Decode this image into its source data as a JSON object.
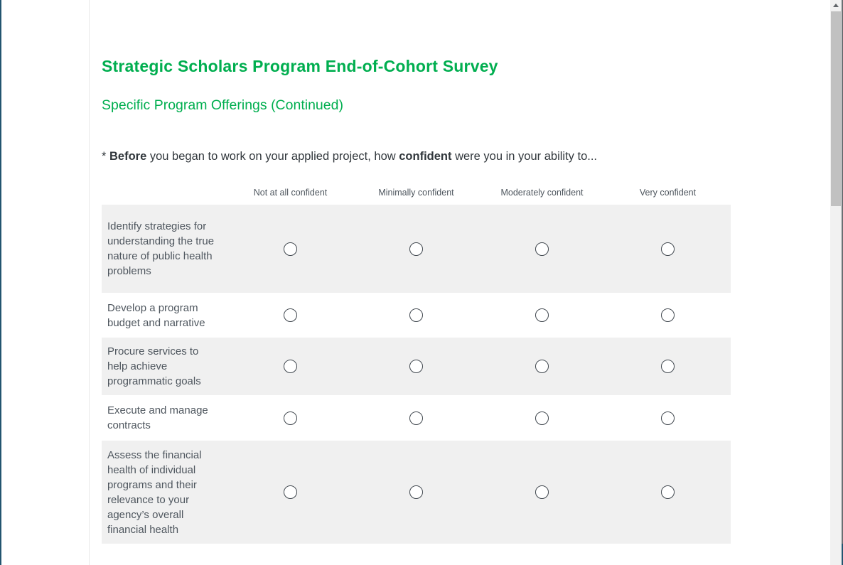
{
  "survey": {
    "title": "Strategic Scholars Program End-of-Cohort Survey",
    "section_title": "Specific Program Offerings (Continued)",
    "question": {
      "star": "* ",
      "bold1": "Before",
      "mid": " you began to work on your applied project, how ",
      "bold2": "confident",
      "tail": " were you in your ability to..."
    },
    "matrix": {
      "columns": [
        "Not at all confident",
        "Minimally confident",
        "Moderately confident",
        "Very confident"
      ],
      "rows": [
        {
          "label": "Identify strategies for understanding the true nature of public health problems"
        },
        {
          "label": "Develop a program budget and narrative"
        },
        {
          "label": "Procure services to help achieve programmatic goals"
        },
        {
          "label": "Execute and manage contracts"
        },
        {
          "label": "Assess the financial health of individual programs and their relevance to your agency’s overall financial health"
        }
      ]
    }
  },
  "scrollbar": {
    "thumb_position": "top",
    "up_arrow": "▲"
  },
  "colors": {
    "accent_green": "#00AE4F",
    "row_alt_bg": "#f0f0f0",
    "text_dark": "#31373c",
    "text_muted": "#4e565e",
    "window_border_blue": "#235570",
    "scrollbar_track": "#f1f1f1",
    "scrollbar_thumb": "#c1c1c1"
  }
}
